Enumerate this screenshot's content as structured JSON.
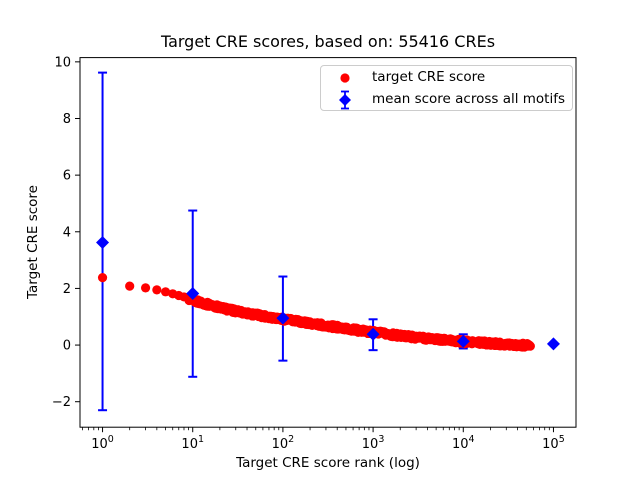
{
  "figure": {
    "background": "#ffffff"
  },
  "chart_data": {
    "type": "scatter",
    "title": "Target CRE scores, based on: 55416 CREs",
    "xlabel": "Target CRE score rank (log)",
    "ylabel": "Target CRE score",
    "x_scale": "log",
    "xlim_log10": [
      -0.25,
      5.25
    ],
    "ylim": [
      -2.9,
      10.15
    ],
    "x_tick_base": "10",
    "x_tick_exponents": [
      0,
      1,
      2,
      3,
      4,
      5
    ],
    "y_tick_values": [
      -2,
      0,
      2,
      4,
      6,
      8,
      10
    ],
    "y_tick_labels": [
      "−2",
      "0",
      "2",
      "4",
      "6",
      "8",
      "10"
    ],
    "grid": false,
    "legend_position": "upper right",
    "total_points": 55416,
    "series": [
      {
        "name": "target CRE score",
        "color": "#ff0000",
        "marker": "circle",
        "profile": {
          "ranks": [
            1,
            2,
            3,
            4,
            5,
            6,
            8,
            10,
            15,
            20,
            30,
            50,
            100,
            200,
            500,
            1000,
            2000,
            5000,
            10000,
            20000,
            40000,
            55416
          ],
          "scores": [
            2.38,
            2.08,
            2.02,
            1.95,
            1.88,
            1.81,
            1.7,
            1.58,
            1.43,
            1.33,
            1.2,
            1.07,
            0.92,
            0.77,
            0.58,
            0.45,
            0.33,
            0.21,
            0.12,
            0.06,
            0.01,
            -0.02
          ]
        }
      },
      {
        "name": "mean score across all motifs",
        "color": "#0000ff",
        "marker": "diamond",
        "points": [
          {
            "rank": 1,
            "mean": 3.62,
            "err_low": -2.3,
            "err_high": 9.62
          },
          {
            "rank": 10,
            "mean": 1.82,
            "err_low": -1.12,
            "err_high": 4.75
          },
          {
            "rank": 100,
            "mean": 0.95,
            "err_low": -0.55,
            "err_high": 2.42
          },
          {
            "rank": 1000,
            "mean": 0.38,
            "err_low": -0.18,
            "err_high": 0.91
          },
          {
            "rank": 10000,
            "mean": 0.13,
            "err_low": -0.12,
            "err_high": 0.38
          },
          {
            "rank": 100000,
            "mean": 0.04,
            "err_low": 0.04,
            "err_high": 0.04
          }
        ]
      }
    ],
    "legend": {
      "items": [
        {
          "label": "target CRE score",
          "marker": "red-dot",
          "color": "#ff0000"
        },
        {
          "label": "mean score across all motifs",
          "marker": "blue-diamond-errorbar",
          "color": "#0000ff"
        }
      ]
    }
  }
}
